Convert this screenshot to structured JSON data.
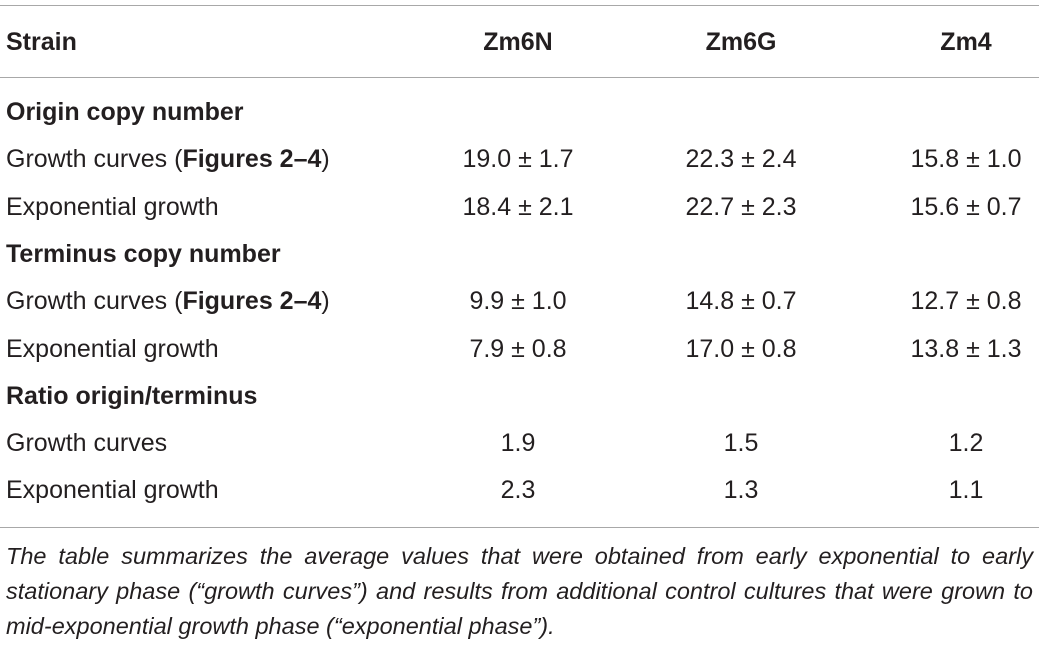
{
  "table": {
    "header": [
      "Strain",
      "Zm6N",
      "Zm6G",
      "Zm4"
    ],
    "sections": [
      {
        "title": "Origin copy number",
        "rows": [
          {
            "label": {
              "text": "Growth curves (",
              "ref": "Figures 2–4",
              "end": ")"
            },
            "cells": [
              "19.0 ± 1.7",
              "22.3 ± 2.4",
              "15.8 ± 1.0"
            ]
          },
          {
            "label": {
              "text": "Exponential growth"
            },
            "cells": [
              "18.4 ± 2.1",
              "22.7 ± 2.3",
              "15.6 ± 0.7"
            ]
          }
        ]
      },
      {
        "title": "Terminus copy number",
        "rows": [
          {
            "label": {
              "text": "Growth curves (",
              "ref": "Figures 2–4",
              "end": ")"
            },
            "cells": [
              "9.9 ± 1.0",
              "14.8 ± 0.7",
              "12.7 ± 0.8"
            ]
          },
          {
            "label": {
              "text": "Exponential growth"
            },
            "cells": [
              "7.9 ± 0.8",
              "17.0 ± 0.8",
              "13.8 ± 1.3"
            ]
          }
        ]
      },
      {
        "title": "Ratio origin/terminus",
        "rows": [
          {
            "label": {
              "text": "Growth curves"
            },
            "cells": [
              "1.9",
              "1.5",
              "1.2"
            ]
          },
          {
            "label": {
              "text": "Exponential growth"
            },
            "cells": [
              "2.3",
              "1.3",
              "1.1"
            ]
          }
        ]
      }
    ],
    "footnote": "The table summarizes the average values that were obtained from early exponential to early stationary phase (“growth curves”) and results from additional control cultures that were grown to mid-exponential growth phase (“exponential phase”)."
  }
}
